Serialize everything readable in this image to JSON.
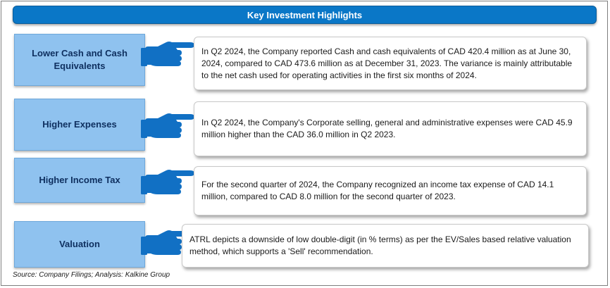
{
  "header": {
    "title": "Key Investment Highlights"
  },
  "highlights": [
    {
      "label": "Lower Cash and Cash Equivalents",
      "text": "In Q2 2024, the Company reported   Cash and cash equivalents of CAD 420.4 million as at June 30, 2024, compared to CAD 473.6 million as at December 31, 2023. The variance is mainly attributable to the net cash used for operating activities in the first six months of 2024."
    },
    {
      "label": "Higher Expenses",
      "text": "In Q2 2024, the Company's Corporate selling, general and administrative expenses were CAD 45.9 million higher than the CAD 36.0 million in Q2 2023."
    },
    {
      "label": "Higher Income Tax",
      "text": "For the second quarter of 2024, the Company recognized an income tax expense of CAD 14.1 million, compared to CAD 8.0 million for the second quarter of 2023."
    },
    {
      "label": "Valuation",
      "text": "ATRL depicts a downside of low double-digit (in % terms) as per the EV/Sales based relative valuation method, which supports a 'Sell' recommendation."
    }
  ],
  "icons": {
    "pointer": "pointing-hand-icon"
  },
  "colors": {
    "header": "#0a77c7",
    "label_bg": "#8fc2ef",
    "label_text": "#0f3060",
    "hand": "#1170c4"
  },
  "footer": {
    "source": "Source: Company Filings; Analysis: Kalkine Group"
  }
}
